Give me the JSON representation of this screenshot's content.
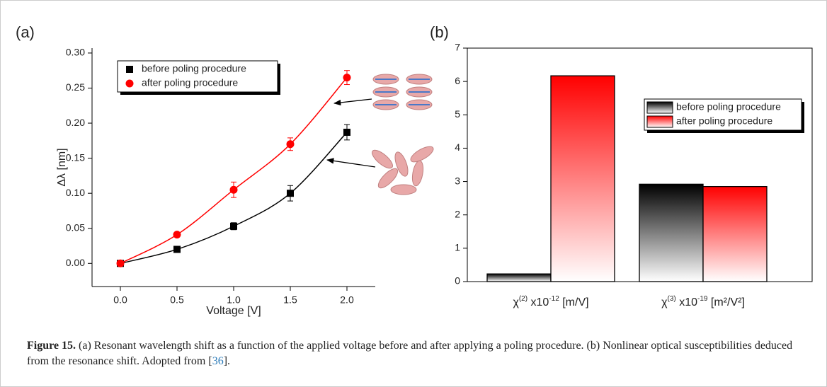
{
  "chart_data": [
    {
      "type": "scatter",
      "panel_label": "(a)",
      "x_label": "Voltage [V]",
      "y_label": "Δλ [nm]",
      "x": [
        0,
        0.5,
        1,
        1.5,
        2
      ],
      "series": [
        {
          "name": "before poling procedure",
          "color": "#000000",
          "marker": "square",
          "values": [
            0,
            0.02,
            0.053,
            0.1,
            0.187
          ],
          "errors": [
            0.002,
            0.003,
            0.005,
            0.011,
            0.011
          ]
        },
        {
          "name": "after poling procedure",
          "color": "#ff0000",
          "marker": "circle",
          "values": [
            0,
            0.041,
            0.105,
            0.17,
            0.265
          ],
          "errors": [
            0.002,
            0.003,
            0.011,
            0.009,
            0.01
          ]
        }
      ],
      "xlim": [
        -0.25,
        2.25
      ],
      "ylim": [
        -0.033,
        0.307
      ],
      "xticks": [
        {
          "value": 0,
          "label": "0.0"
        },
        {
          "value": 0.5,
          "label": "0.5"
        },
        {
          "value": 1,
          "label": "1.0"
        },
        {
          "value": 1.5,
          "label": "1.5"
        },
        {
          "value": 2,
          "label": "2.0"
        }
      ],
      "yticks": [
        {
          "value": 0,
          "label": "0.00"
        },
        {
          "value": 0.05,
          "label": "0.05"
        },
        {
          "value": 0.1,
          "label": "0.10"
        },
        {
          "value": 0.15,
          "label": "0.15"
        },
        {
          "value": 0.2,
          "label": "0.20"
        },
        {
          "value": 0.25,
          "label": "0.25"
        },
        {
          "value": 0.3,
          "label": "0.30"
        }
      ],
      "legend": "upper left"
    },
    {
      "type": "bar",
      "panel_label": "(b)",
      "categories": [
        [
          "χ",
          "(2)",
          " x10",
          "-12",
          " [m/V]"
        ],
        [
          "χ",
          "(3)",
          " x10",
          "-19",
          " [m²/V²]"
        ]
      ],
      "series": [
        {
          "name": "before poling procedure",
          "color": "#000000",
          "values": [
            0.23,
            2.92
          ]
        },
        {
          "name": "after poling procedure",
          "color": "#ff0000",
          "values": [
            6.17,
            2.85
          ]
        }
      ],
      "ylim": [
        0,
        7
      ],
      "yticks": [
        0,
        1,
        2,
        3,
        4,
        5,
        6,
        7
      ],
      "legend": "center right"
    }
  ],
  "caption": {
    "label": "Figure 15.",
    "text_before": "(a) Resonant wavelength shift as a function of the applied voltage before and after applying a poling procedure. (b) Nonlinear optical susceptibilities deduced from the resonance shift. Adopted from [",
    "ref": "36",
    "text_after": "]."
  }
}
